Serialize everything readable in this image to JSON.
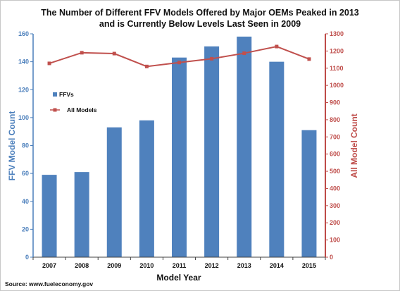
{
  "chart_data": {
    "type": "bar+line",
    "title_line1": "The Number of Different FFV Models Offered by Major OEMs Peaked in 2013",
    "title_line2": "and is Currently Below Levels Last Seen in 2009",
    "xlabel": "Model Year",
    "ylabel_left": "FFV Model Count",
    "ylabel_right": "All Model Count",
    "categories": [
      "2007",
      "2008",
      "2009",
      "2010",
      "2011",
      "2012",
      "2013",
      "2014",
      "2015"
    ],
    "ylim_left": [
      0,
      160
    ],
    "yticks_left": [
      "0",
      "20",
      "40",
      "60",
      "80",
      "100",
      "120",
      "140",
      "160"
    ],
    "ylim_right": [
      0,
      1300
    ],
    "yticks_right": [
      "0",
      "100",
      "200",
      "300",
      "400",
      "500",
      "600",
      "700",
      "800",
      "900",
      "1000",
      "1100",
      "1200",
      "1300"
    ],
    "series": [
      {
        "name": "FFVs",
        "type": "bar",
        "axis": "left",
        "values": [
          59,
          61,
          93,
          98,
          143,
          151,
          158,
          140,
          91
        ]
      },
      {
        "name": "All Models",
        "type": "line",
        "axis": "right",
        "values": [
          1128,
          1190,
          1185,
          1110,
          1133,
          1155,
          1187,
          1226,
          1153
        ]
      }
    ],
    "legend": {
      "position": "upper-left inside plot",
      "items": [
        "FFVs",
        "All Models"
      ]
    },
    "source": "Source: www.fueleconomy.gov",
    "colors": {
      "bars": "#4f81bd",
      "line": "#c0504d",
      "left_axis": "#4a7ebb",
      "right_axis": "#be4b48",
      "text": "#111111"
    }
  }
}
